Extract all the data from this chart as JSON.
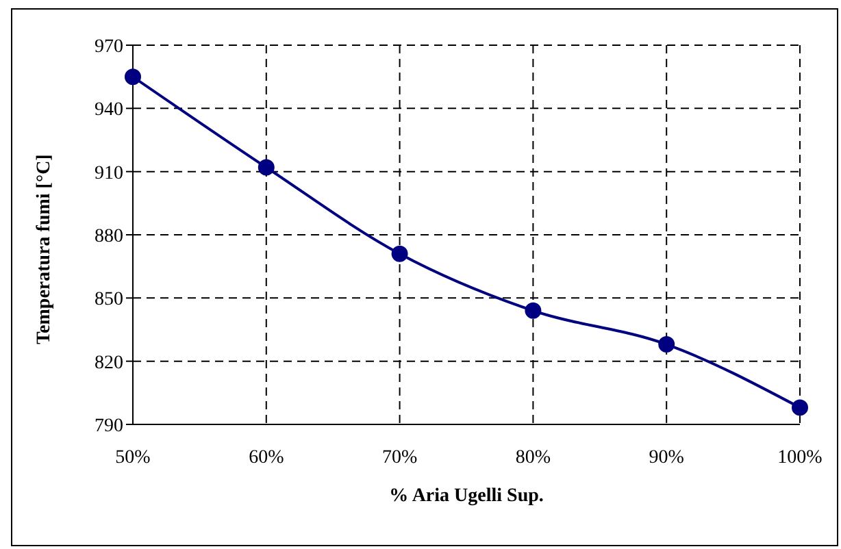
{
  "chart_data": {
    "type": "line",
    "xlabel": "% Aria Ugelli Sup.",
    "ylabel": "Temperatura fumi [°C]",
    "x": [
      50,
      60,
      70,
      80,
      90,
      100
    ],
    "series": [
      {
        "color": "#000080",
        "values": [
          955,
          912,
          871,
          844,
          828,
          798
        ]
      }
    ],
    "xlim": [
      50,
      100
    ],
    "xticks": [
      {
        "value": 50,
        "label": "50%"
      },
      {
        "value": 60,
        "label": "60%"
      },
      {
        "value": 70,
        "label": "70%"
      },
      {
        "value": 80,
        "label": "80%"
      },
      {
        "value": 90,
        "label": "90%"
      },
      {
        "value": 100,
        "label": "100%"
      }
    ],
    "ylim": [
      790,
      970
    ],
    "yticks": [
      790,
      820,
      850,
      880,
      910,
      940,
      970
    ],
    "grid": true,
    "marker": "circle",
    "line_style": "solid",
    "legend": false
  }
}
